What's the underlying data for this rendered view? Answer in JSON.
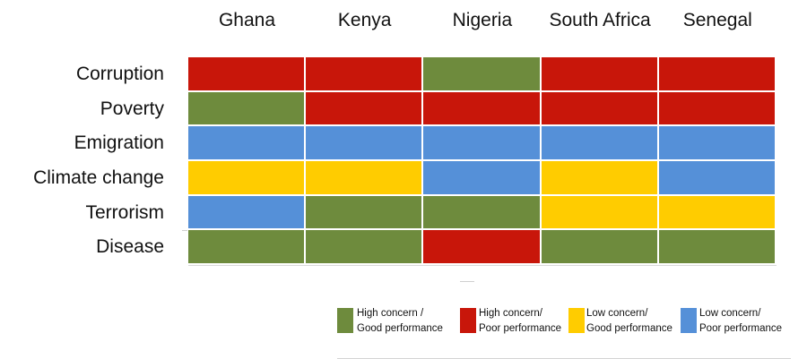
{
  "chart_data": {
    "type": "heatmap",
    "columns": [
      "Ghana",
      "Kenya",
      "Nigeria",
      "South Africa",
      "Senegal"
    ],
    "rows": [
      "Corruption",
      "Poverty",
      "Emigration",
      "Climate change",
      "Terrorism",
      "Disease"
    ],
    "cells": [
      [
        "poor_high",
        "poor_high",
        "good_high",
        "poor_high",
        "poor_high"
      ],
      [
        "good_high",
        "poor_high",
        "poor_high",
        "poor_high",
        "poor_high"
      ],
      [
        "poor_low",
        "poor_low",
        "poor_low",
        "poor_low",
        "poor_low"
      ],
      [
        "good_low",
        "good_low",
        "poor_low",
        "good_low",
        "poor_low"
      ],
      [
        "poor_low",
        "good_high",
        "good_high",
        "good_low",
        "good_low"
      ],
      [
        "good_high",
        "good_high",
        "poor_high",
        "good_high",
        "good_high"
      ]
    ],
    "legend": [
      {
        "key": "good_high",
        "line1": "High concern /",
        "line2": "Good performance",
        "color": "#6e8b3d"
      },
      {
        "key": "poor_high",
        "line1": "High concern/",
        "line2": "Poor performance",
        "color": "#c8160a"
      },
      {
        "key": "good_low",
        "line1": "Low concern/",
        "line2": "Good performance",
        "color": "#ffcc00"
      },
      {
        "key": "poor_low",
        "line1": "Low concern/",
        "line2": "Poor performance",
        "color": "#5590d8"
      }
    ]
  }
}
